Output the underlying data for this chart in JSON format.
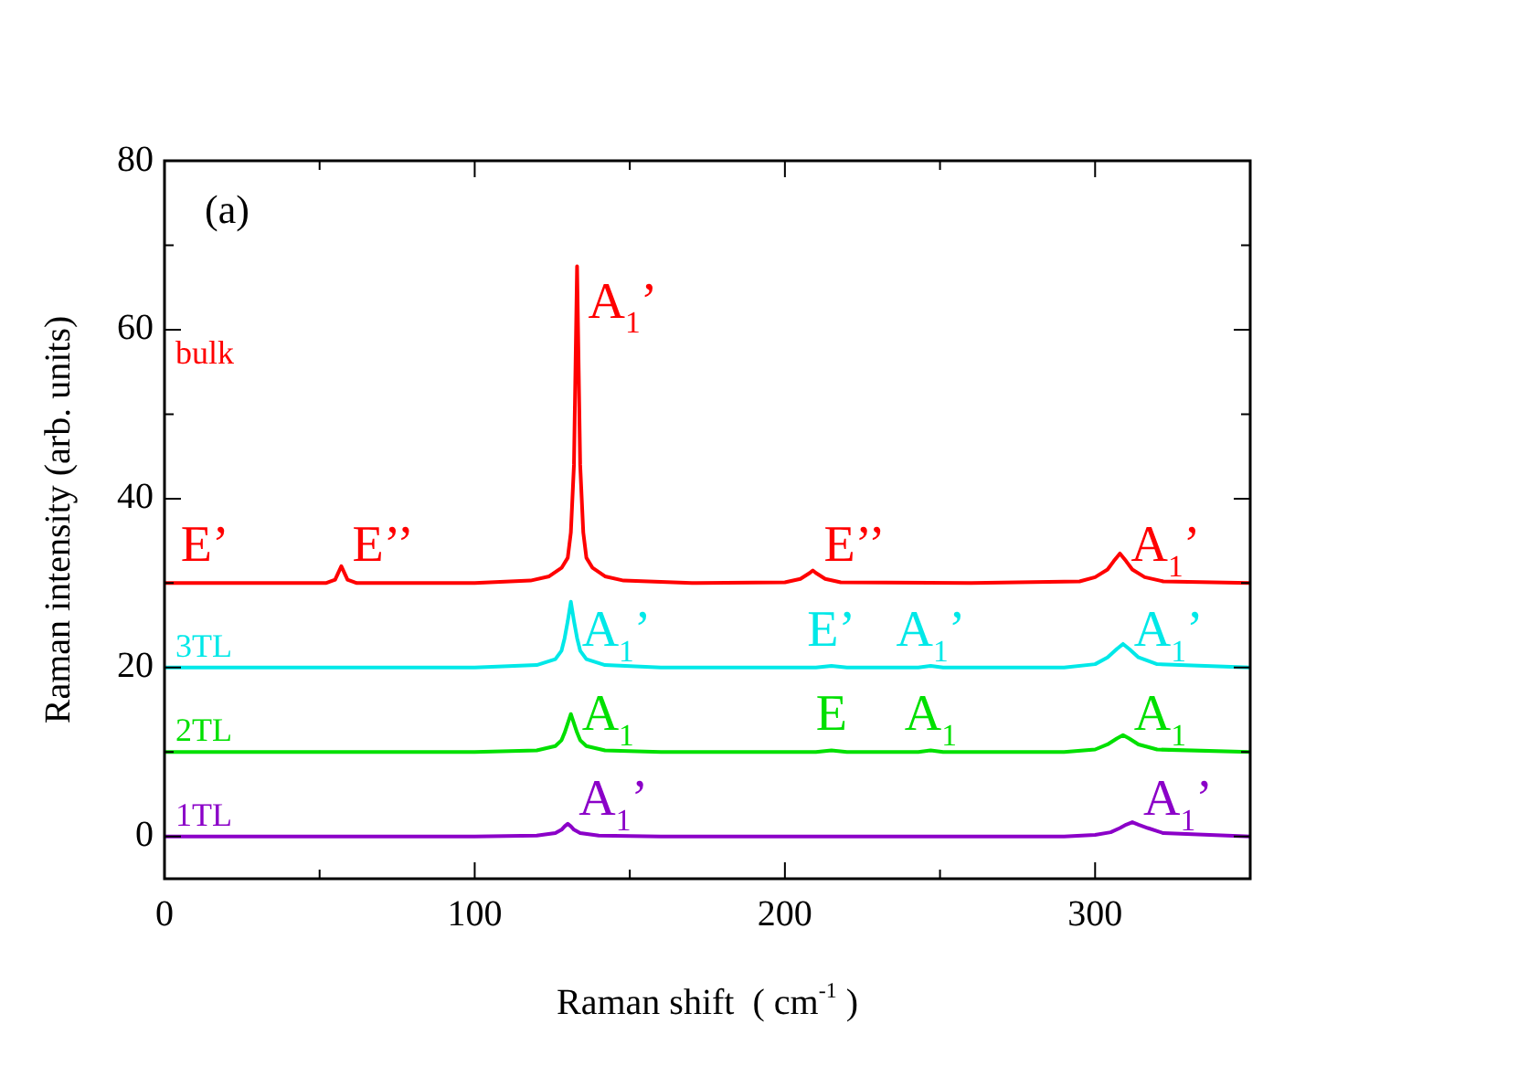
{
  "chart_data": {
    "type": "line",
    "xlabel": "Raman shift  ( cm$^{-1}$ )",
    "ylabel": "Raman intensity (arb. units)",
    "xlim": [
      0,
      350
    ],
    "xticks": [
      0,
      {
        "value": 50,
        "label": null
      },
      100,
      {
        "value": 150,
        "label": null
      },
      200,
      {
        "value": 250,
        "label": null
      },
      300
    ],
    "ylim": [
      -5,
      80
    ],
    "yticks": [
      0,
      {
        "value": 10,
        "label": null
      },
      20,
      {
        "value": 30,
        "label": null
      },
      40,
      {
        "value": 50,
        "label": null
      },
      60,
      {
        "value": 70,
        "label": null
      },
      80
    ],
    "grid": false,
    "legend": false,
    "marker": "none",
    "line_style": "solid",
    "series": [
      {
        "name": "bulk",
        "color": "#ff0000",
        "x": [
          0,
          40,
          52,
          55,
          57,
          59,
          62,
          100,
          118,
          124,
          128,
          130,
          131,
          132,
          133,
          134,
          135,
          136,
          138,
          142,
          148,
          170,
          200,
          205,
          208,
          209,
          210,
          213,
          218,
          260,
          295,
          300,
          304,
          306,
          308,
          310,
          312,
          316,
          322,
          350
        ],
        "values": [
          30,
          30,
          30,
          30.4,
          32,
          30.4,
          30,
          30,
          30.3,
          30.8,
          31.8,
          33,
          36,
          44,
          67.5,
          44,
          36,
          33,
          31.8,
          30.8,
          30.3,
          30,
          30.1,
          30.5,
          31.2,
          31.5,
          31.2,
          30.5,
          30.1,
          30,
          30.2,
          30.7,
          31.6,
          32.6,
          33.5,
          32.6,
          31.6,
          30.7,
          30.2,
          30
        ]
      },
      {
        "name": "3TL",
        "color": "#00e8e8",
        "x": [
          0,
          100,
          120,
          126,
          128,
          129,
          130,
          131,
          132,
          133,
          134,
          136,
          142,
          160,
          210,
          215,
          220,
          243,
          247,
          251,
          290,
          300,
          304,
          307,
          309,
          311,
          314,
          320,
          350
        ],
        "values": [
          20,
          20,
          20.3,
          21,
          22,
          23.5,
          25.5,
          27.8,
          25.5,
          23.5,
          22,
          21,
          20.3,
          20,
          20,
          20.2,
          20,
          20,
          20.2,
          20,
          20,
          20.4,
          21.2,
          22.2,
          22.8,
          22.2,
          21.2,
          20.4,
          20
        ]
      },
      {
        "name": "2TL",
        "color": "#00e000",
        "x": [
          0,
          100,
          120,
          126,
          128,
          129,
          130,
          131,
          132,
          133,
          134,
          136,
          142,
          160,
          210,
          215,
          220,
          243,
          247,
          251,
          290,
          300,
          304,
          307,
          309,
          311,
          314,
          320,
          350
        ],
        "values": [
          10,
          10,
          10.2,
          10.7,
          11.4,
          12.3,
          13.4,
          14.5,
          13.4,
          12.3,
          11.4,
          10.7,
          10.2,
          10,
          10,
          10.2,
          10,
          10,
          10.2,
          10,
          10,
          10.3,
          10.9,
          11.6,
          12,
          11.6,
          10.9,
          10.3,
          10
        ]
      },
      {
        "name": "1TL",
        "color": "#8b00c8",
        "x": [
          0,
          100,
          120,
          126,
          128,
          129,
          130,
          131,
          132,
          134,
          140,
          160,
          290,
          300,
          305,
          308,
          310,
          312,
          314,
          317,
          322,
          350
        ],
        "values": [
          0,
          0,
          0.1,
          0.4,
          0.8,
          1.2,
          1.5,
          1.2,
          0.8,
          0.4,
          0.1,
          0,
          0,
          0.2,
          0.5,
          1,
          1.4,
          1.7,
          1.4,
          1,
          0.4,
          0
        ]
      }
    ],
    "annotations": [
      "(a)",
      {
        "text": "E’",
        "x": 13,
        "y": 30
      },
      {
        "text": "E’’",
        "x": 57,
        "y": 32
      },
      {
        "text": "A$_{1}$’",
        "x": 133,
        "y": 67.5
      },
      {
        "text": "E’’",
        "x": 209,
        "y": 31.5
      },
      {
        "text": "A$_{1}$’",
        "x": 308,
        "y": 33.5
      },
      {
        "text": "A$_{1}$’",
        "x": 131,
        "y": 27.8
      },
      {
        "text": "E’",
        "x": 215,
        "y": 20.2
      },
      {
        "text": "A$_{1}$’",
        "x": 247,
        "y": 20.2
      },
      {
        "text": "A$_{1}$’",
        "x": 309,
        "y": 22.8
      },
      {
        "text": "A$_{1}$",
        "x": 131,
        "y": 14.5
      },
      {
        "text": "E",
        "x": 215,
        "y": 10.2
      },
      {
        "text": "A$_{1}$",
        "x": 247,
        "y": 10.2
      },
      {
        "text": "A$_{1}$",
        "x": 309,
        "y": 12
      },
      {
        "text": "A$_{1}$’",
        "x": 130,
        "y": 1.5
      },
      {
        "text": "A$_{1}$’",
        "x": 312,
        "y": 1.7
      }
    ]
  }
}
